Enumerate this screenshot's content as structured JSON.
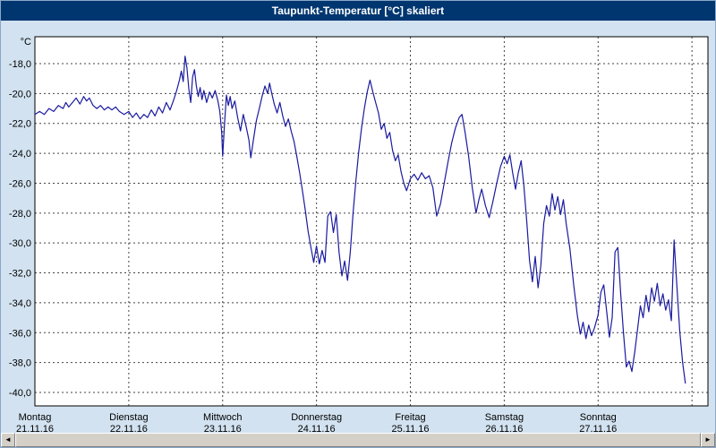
{
  "window": {
    "title": "Taupunkt-Temperatur [°C] skaliert"
  },
  "colors": {
    "title_bar": "#003670",
    "background": "#d2e2f0",
    "plot_background": "#ffffff",
    "grid": "#444444",
    "line": "#1a1aa0"
  },
  "scrollbar": {
    "left_arrow": "◄",
    "right_arrow": "►"
  },
  "chart_data": {
    "type": "line",
    "title": "Taupunkt-Temperatur [°C] skaliert",
    "y_unit_label": "°C",
    "ylabel": "Taupunkt-Temperatur [°C]",
    "ylim": [
      -40.9,
      -16.2
    ],
    "y_ticks": [
      -18,
      -20,
      -22,
      -24,
      -26,
      -28,
      -30,
      -32,
      -34,
      -36,
      -38,
      -40
    ],
    "y_tick_labels": [
      "-18,0",
      "-20,0",
      "-22,0",
      "-24,0",
      "-26,0",
      "-28,0",
      "-30,0",
      "-32,0",
      "-34,0",
      "-36,0",
      "-38,0",
      "-40,0"
    ],
    "x_days": [
      {
        "name": "Montag",
        "date": "21.11.16"
      },
      {
        "name": "Dienstag",
        "date": "22.11.16"
      },
      {
        "name": "Mittwoch",
        "date": "23.11.16"
      },
      {
        "name": "Donnerstag",
        "date": "24.11.16"
      },
      {
        "name": "Freitag",
        "date": "25.11.16"
      },
      {
        "name": "Samstag",
        "date": "26.11.16"
      },
      {
        "name": "Sonntag",
        "date": "27.11.16"
      }
    ],
    "x_range_days": [
      0,
      7.17
    ],
    "x_gridlines_days": [
      1,
      2,
      3,
      4,
      5,
      6,
      7
    ],
    "grid": "dashed",
    "legend": "none",
    "series": [
      {
        "name": "Taupunkt-Temperatur",
        "points": [
          [
            0.0,
            -21.4
          ],
          [
            0.05,
            -21.2
          ],
          [
            0.1,
            -21.4
          ],
          [
            0.15,
            -21.0
          ],
          [
            0.2,
            -21.2
          ],
          [
            0.25,
            -20.8
          ],
          [
            0.3,
            -21.0
          ],
          [
            0.33,
            -20.6
          ],
          [
            0.36,
            -20.9
          ],
          [
            0.4,
            -20.6
          ],
          [
            0.44,
            -20.3
          ],
          [
            0.48,
            -20.7
          ],
          [
            0.52,
            -20.2
          ],
          [
            0.55,
            -20.5
          ],
          [
            0.58,
            -20.3
          ],
          [
            0.62,
            -20.8
          ],
          [
            0.66,
            -21.0
          ],
          [
            0.7,
            -20.8
          ],
          [
            0.74,
            -21.1
          ],
          [
            0.78,
            -20.9
          ],
          [
            0.82,
            -21.1
          ],
          [
            0.86,
            -20.9
          ],
          [
            0.9,
            -21.2
          ],
          [
            0.95,
            -21.4
          ],
          [
            1.0,
            -21.2
          ],
          [
            1.04,
            -21.6
          ],
          [
            1.08,
            -21.3
          ],
          [
            1.12,
            -21.7
          ],
          [
            1.16,
            -21.4
          ],
          [
            1.2,
            -21.6
          ],
          [
            1.24,
            -21.1
          ],
          [
            1.28,
            -21.5
          ],
          [
            1.32,
            -20.9
          ],
          [
            1.36,
            -21.3
          ],
          [
            1.4,
            -20.6
          ],
          [
            1.44,
            -21.1
          ],
          [
            1.48,
            -20.4
          ],
          [
            1.51,
            -19.8
          ],
          [
            1.54,
            -19.1
          ],
          [
            1.56,
            -18.5
          ],
          [
            1.58,
            -19.2
          ],
          [
            1.6,
            -17.5
          ],
          [
            1.62,
            -18.3
          ],
          [
            1.64,
            -19.7
          ],
          [
            1.66,
            -20.6
          ],
          [
            1.68,
            -18.9
          ],
          [
            1.7,
            -18.4
          ],
          [
            1.72,
            -19.5
          ],
          [
            1.74,
            -20.2
          ],
          [
            1.76,
            -19.6
          ],
          [
            1.78,
            -20.4
          ],
          [
            1.8,
            -19.8
          ],
          [
            1.83,
            -20.6
          ],
          [
            1.86,
            -19.9
          ],
          [
            1.89,
            -20.3
          ],
          [
            1.92,
            -19.8
          ],
          [
            1.95,
            -20.5
          ],
          [
            1.97,
            -21.2
          ],
          [
            1.99,
            -22.6
          ],
          [
            2.0,
            -24.2
          ],
          [
            2.02,
            -22.0
          ],
          [
            2.04,
            -20.1
          ],
          [
            2.06,
            -20.8
          ],
          [
            2.08,
            -20.2
          ],
          [
            2.1,
            -21.0
          ],
          [
            2.13,
            -20.5
          ],
          [
            2.16,
            -21.6
          ],
          [
            2.19,
            -22.5
          ],
          [
            2.22,
            -21.4
          ],
          [
            2.25,
            -22.2
          ],
          [
            2.28,
            -23.1
          ],
          [
            2.3,
            -24.3
          ],
          [
            2.33,
            -23.0
          ],
          [
            2.36,
            -21.8
          ],
          [
            2.39,
            -21.0
          ],
          [
            2.42,
            -20.2
          ],
          [
            2.45,
            -19.5
          ],
          [
            2.48,
            -20.0
          ],
          [
            2.5,
            -19.3
          ],
          [
            2.52,
            -19.9
          ],
          [
            2.55,
            -20.7
          ],
          [
            2.58,
            -21.3
          ],
          [
            2.61,
            -20.6
          ],
          [
            2.64,
            -21.5
          ],
          [
            2.67,
            -22.2
          ],
          [
            2.7,
            -21.7
          ],
          [
            2.73,
            -22.5
          ],
          [
            2.76,
            -23.2
          ],
          [
            2.79,
            -24.2
          ],
          [
            2.82,
            -25.3
          ],
          [
            2.85,
            -26.5
          ],
          [
            2.88,
            -27.8
          ],
          [
            2.91,
            -29.2
          ],
          [
            2.94,
            -30.3
          ],
          [
            2.97,
            -31.3
          ],
          [
            3.0,
            -30.2
          ],
          [
            3.03,
            -31.4
          ],
          [
            3.06,
            -30.5
          ],
          [
            3.09,
            -31.3
          ],
          [
            3.12,
            -28.2
          ],
          [
            3.15,
            -27.9
          ],
          [
            3.18,
            -29.3
          ],
          [
            3.21,
            -28.1
          ],
          [
            3.24,
            -30.6
          ],
          [
            3.27,
            -32.2
          ],
          [
            3.3,
            -31.2
          ],
          [
            3.33,
            -32.5
          ],
          [
            3.36,
            -30.6
          ],
          [
            3.39,
            -28.0
          ],
          [
            3.42,
            -25.8
          ],
          [
            3.45,
            -23.9
          ],
          [
            3.48,
            -22.3
          ],
          [
            3.51,
            -21.0
          ],
          [
            3.54,
            -19.9
          ],
          [
            3.57,
            -19.1
          ],
          [
            3.6,
            -19.9
          ],
          [
            3.63,
            -20.6
          ],
          [
            3.66,
            -21.3
          ],
          [
            3.69,
            -22.4
          ],
          [
            3.72,
            -22.0
          ],
          [
            3.75,
            -23.0
          ],
          [
            3.78,
            -22.6
          ],
          [
            3.81,
            -23.8
          ],
          [
            3.84,
            -24.5
          ],
          [
            3.87,
            -24.1
          ],
          [
            3.9,
            -25.2
          ],
          [
            3.93,
            -26.0
          ],
          [
            3.96,
            -26.5
          ],
          [
            4.0,
            -25.7
          ],
          [
            4.04,
            -25.4
          ],
          [
            4.08,
            -25.8
          ],
          [
            4.12,
            -25.3
          ],
          [
            4.16,
            -25.7
          ],
          [
            4.2,
            -25.5
          ],
          [
            4.24,
            -26.3
          ],
          [
            4.28,
            -28.2
          ],
          [
            4.32,
            -27.4
          ],
          [
            4.36,
            -26.0
          ],
          [
            4.4,
            -24.6
          ],
          [
            4.44,
            -23.3
          ],
          [
            4.48,
            -22.3
          ],
          [
            4.52,
            -21.6
          ],
          [
            4.55,
            -21.4
          ],
          [
            4.58,
            -22.5
          ],
          [
            4.62,
            -24.2
          ],
          [
            4.66,
            -26.3
          ],
          [
            4.7,
            -28.0
          ],
          [
            4.73,
            -27.1
          ],
          [
            4.76,
            -26.4
          ],
          [
            4.8,
            -27.5
          ],
          [
            4.84,
            -28.3
          ],
          [
            4.88,
            -27.2
          ],
          [
            4.92,
            -26.0
          ],
          [
            4.96,
            -24.9
          ],
          [
            5.0,
            -24.2
          ],
          [
            5.03,
            -24.7
          ],
          [
            5.06,
            -24.1
          ],
          [
            5.09,
            -25.3
          ],
          [
            5.12,
            -26.4
          ],
          [
            5.15,
            -25.3
          ],
          [
            5.18,
            -24.5
          ],
          [
            5.21,
            -26.2
          ],
          [
            5.24,
            -28.6
          ],
          [
            5.27,
            -31.2
          ],
          [
            5.3,
            -32.6
          ],
          [
            5.33,
            -30.9
          ],
          [
            5.36,
            -33.0
          ],
          [
            5.39,
            -31.5
          ],
          [
            5.42,
            -28.7
          ],
          [
            5.45,
            -27.5
          ],
          [
            5.48,
            -28.2
          ],
          [
            5.51,
            -26.7
          ],
          [
            5.54,
            -27.8
          ],
          [
            5.57,
            -26.9
          ],
          [
            5.6,
            -28.1
          ],
          [
            5.63,
            -27.1
          ],
          [
            5.66,
            -28.7
          ],
          [
            5.7,
            -30.4
          ],
          [
            5.74,
            -32.8
          ],
          [
            5.78,
            -34.9
          ],
          [
            5.81,
            -36.1
          ],
          [
            5.84,
            -35.3
          ],
          [
            5.87,
            -36.4
          ],
          [
            5.9,
            -35.5
          ],
          [
            5.93,
            -36.2
          ],
          [
            5.96,
            -35.7
          ],
          [
            6.0,
            -34.8
          ],
          [
            6.03,
            -33.3
          ],
          [
            6.06,
            -32.8
          ],
          [
            6.09,
            -34.5
          ],
          [
            6.12,
            -36.3
          ],
          [
            6.15,
            -35.0
          ],
          [
            6.18,
            -30.6
          ],
          [
            6.21,
            -30.3
          ],
          [
            6.24,
            -33.4
          ],
          [
            6.27,
            -36.0
          ],
          [
            6.3,
            -38.3
          ],
          [
            6.33,
            -37.9
          ],
          [
            6.36,
            -38.6
          ],
          [
            6.39,
            -37.3
          ],
          [
            6.42,
            -35.8
          ],
          [
            6.45,
            -34.2
          ],
          [
            6.48,
            -35.0
          ],
          [
            6.51,
            -33.5
          ],
          [
            6.54,
            -34.6
          ],
          [
            6.57,
            -33.0
          ],
          [
            6.6,
            -33.9
          ],
          [
            6.63,
            -32.7
          ],
          [
            6.66,
            -34.2
          ],
          [
            6.69,
            -33.4
          ],
          [
            6.72,
            -34.5
          ],
          [
            6.75,
            -33.8
          ],
          [
            6.78,
            -35.2
          ],
          [
            6.81,
            -29.8
          ],
          [
            6.84,
            -33.0
          ],
          [
            6.87,
            -35.9
          ],
          [
            6.9,
            -38.0
          ],
          [
            6.93,
            -39.4
          ]
        ]
      }
    ]
  }
}
